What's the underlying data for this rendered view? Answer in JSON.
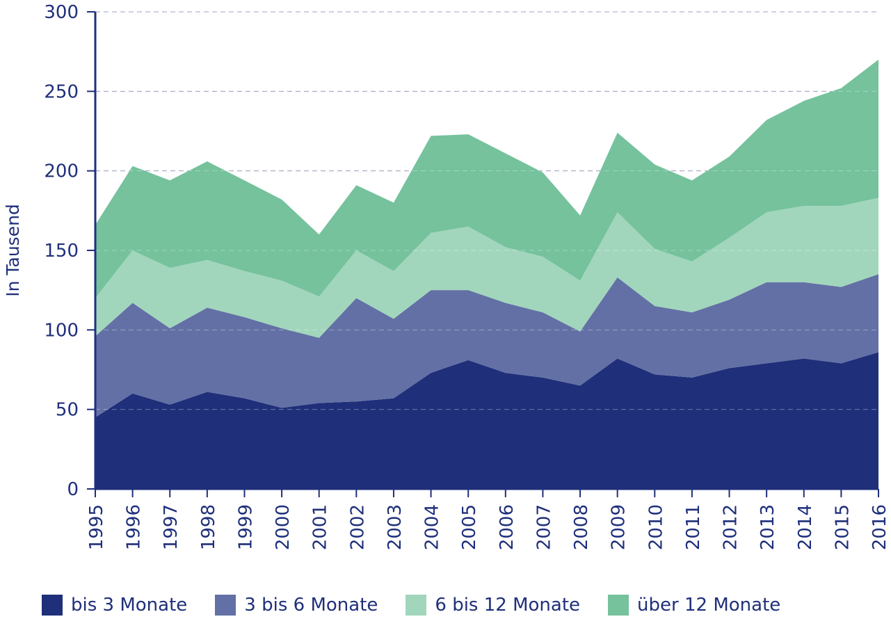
{
  "chart_data": {
    "type": "area",
    "stacked": true,
    "ylabel": "In Tausend",
    "xlabel": "",
    "ylim": [
      0,
      300
    ],
    "yticks": [
      "0",
      "50",
      "100",
      "150",
      "200",
      "250",
      "300"
    ],
    "grid": "horizontal dashed",
    "legend_position": "bottom",
    "x": [
      "1995",
      "1996",
      "1997",
      "1998",
      "1999",
      "2000",
      "2001",
      "2002",
      "2003",
      "2004",
      "2005",
      "2006",
      "2007",
      "2008",
      "2009",
      "2010",
      "2011",
      "2012",
      "2013",
      "2014",
      "2015",
      "2016"
    ],
    "series": [
      {
        "name": "bis 3 Monate",
        "color": "#1f2f7a",
        "values": [
          45,
          60,
          53,
          61,
          57,
          51,
          54,
          55,
          57,
          73,
          81,
          73,
          70,
          65,
          82,
          72,
          70,
          76,
          79,
          82,
          79,
          86
        ]
      },
      {
        "name": "3 bis 6 Monate",
        "color": "#6370a5",
        "values": [
          51,
          57,
          48,
          53,
          51,
          50,
          41,
          65,
          50,
          52,
          44,
          44,
          41,
          34,
          51,
          43,
          41,
          43,
          51,
          48,
          48,
          49
        ]
      },
      {
        "name": "6 bis 12 Monate",
        "color": "#a1d6bc",
        "values": [
          24,
          33,
          38,
          30,
          29,
          30,
          26,
          30,
          30,
          36,
          40,
          35,
          35,
          32,
          41,
          36,
          32,
          39,
          44,
          48,
          51,
          48
        ]
      },
      {
        "name": "über 12 Monate",
        "color": "#75c29d",
        "values": [
          46,
          53,
          55,
          62,
          57,
          51,
          39,
          41,
          43,
          61,
          58,
          59,
          53,
          41,
          50,
          53,
          51,
          51,
          58,
          66,
          74,
          87
        ]
      }
    ]
  }
}
